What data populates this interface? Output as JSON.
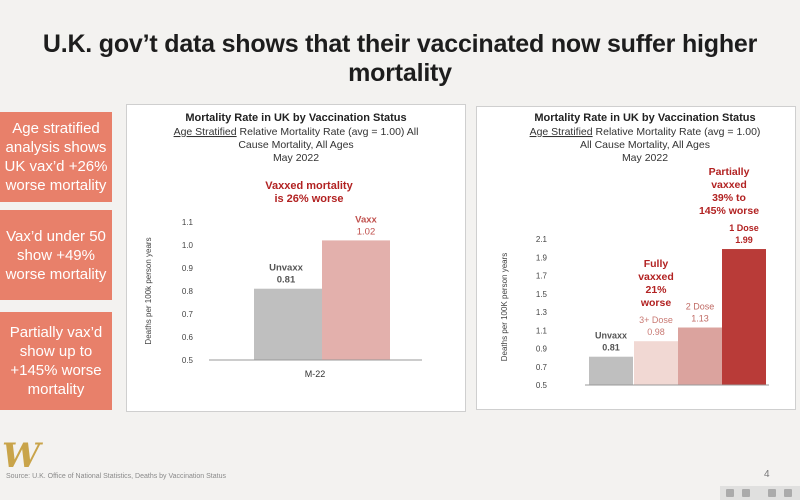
{
  "title": "U.K. gov’t data shows that their vaccinated now suffer higher mortality",
  "callouts": [
    "Age stratified analysis shows UK vax’d +26% worse mortality",
    "Vax’d under 50 show +49% worse mortality",
    "Partially vax’d show up to +145% worse mortality"
  ],
  "colors": {
    "callout_bg": "#e8806a",
    "unvaxx": "#bfbfbf",
    "vaxx": "#e3b0ac",
    "three_dose": "#f1d8d3",
    "two_dose": "#dba39e",
    "one_dose": "#b93b38",
    "annotation_red": "#b22222"
  },
  "source": "Source: U.K. Office of National Statistics, Deaths by Vaccination Status",
  "page_number": "4",
  "chart_data": [
    {
      "type": "bar",
      "title": "Mortality Rate in UK by Vaccination Status",
      "subtitle_underlined": "Age Stratified",
      "subtitle_rest_line1": " Relative Mortality Rate (avg = 1.00) All",
      "subtitle_line2": "Cause Mortality, All Ages",
      "subtitle_line3": "May 2022",
      "ylabel": "Deaths per 100k person years",
      "ylim": [
        0.5,
        1.1
      ],
      "yticks": [
        "0.5",
        "0.6",
        "0.7",
        "0.8",
        "0.9",
        "1.0",
        "1.1"
      ],
      "ytick_values": [
        0.5,
        0.6,
        0.7,
        0.8,
        0.9,
        1.0,
        1.1
      ],
      "categories": [
        "M-22"
      ],
      "series": [
        {
          "name": "Unvaxx",
          "values": [
            0.81
          ],
          "label": "0.81",
          "color": "#bfbfbf"
        },
        {
          "name": "Vaxx",
          "values": [
            1.02
          ],
          "label": "1.02",
          "color": "#e3b0ac"
        }
      ],
      "annotation": [
        "Vaxxed mortality",
        "is 26% worse"
      ],
      "grid": false
    },
    {
      "type": "bar",
      "title": "Mortality Rate in UK by Vaccination Status",
      "subtitle_underlined": "Age Stratified",
      "subtitle_rest_line1": " Relative Mortality Rate (avg = 1.00)",
      "subtitle_line2": "All Cause Mortality, All Ages",
      "subtitle_line3": "May 2022",
      "ylabel": "Deaths per 100K person years",
      "ylim": [
        0.5,
        2.1
      ],
      "yticks": [
        "0.5",
        "0.7",
        "0.9",
        "1.1",
        "1.3",
        "1.5",
        "1.7",
        "1.9",
        "2.1"
      ],
      "ytick_values": [
        0.5,
        0.7,
        0.9,
        1.1,
        1.3,
        1.5,
        1.7,
        1.9,
        2.1
      ],
      "categories": [
        "Unvaxx",
        "3+ Dose",
        "2 Dose",
        "1 Dose"
      ],
      "values": [
        0.81,
        0.98,
        1.13,
        1.99
      ],
      "labels": [
        "0.81",
        "0.98",
        "1.13",
        "1.99"
      ],
      "bar_colors": [
        "#bfbfbf",
        "#f1d8d3",
        "#dba39e",
        "#b93b38"
      ],
      "annotations": [
        {
          "lines": [
            "Fully",
            "vaxxed",
            "21%",
            "worse"
          ]
        },
        {
          "lines": [
            "Partially",
            "vaxxed",
            "39% to",
            "145% worse"
          ]
        }
      ],
      "grid": false
    }
  ]
}
